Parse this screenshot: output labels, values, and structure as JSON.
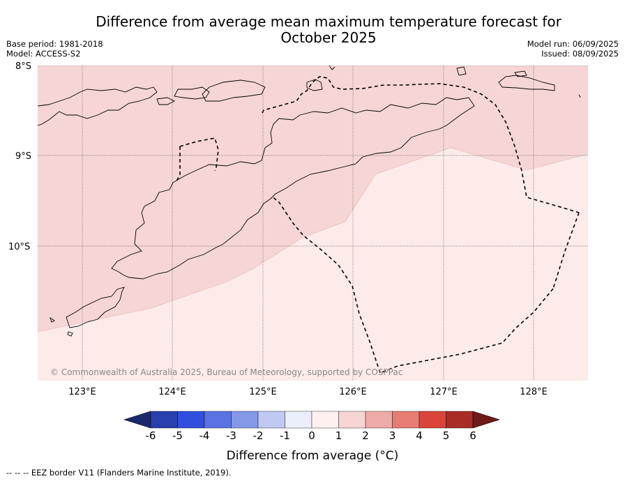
{
  "title": "Difference from average mean maximum temperature forecast for October 2025",
  "base_period": "Base period: 1981-2018",
  "model": "Model: ACCESS-S2",
  "model_run": "Model run: 06/09/2025",
  "issued": "Issued: 08/09/2025",
  "copyright": "© Commonwealth of Australia 2025, Bureau of Meteorology, supported by COSPPac",
  "footnote": "--  --  -- EEZ border V11 (Flanders Marine Institute, 2019).",
  "lat_labels": [
    "8°S",
    "9°S",
    "10°S"
  ],
  "lon_labels": [
    "123°E",
    "124°E",
    "125°E",
    "126°E",
    "127°E",
    "128°E"
  ],
  "colorbar": {
    "title": "Difference from average (°C)",
    "ticks": [
      "-6",
      "-5",
      "-4",
      "-3",
      "-2",
      "-1",
      "0",
      "1",
      "2",
      "3",
      "4",
      "5",
      "6"
    ],
    "colors": [
      "#1b2a6e",
      "#2a3fae",
      "#2f4fdc",
      "#5a72e2",
      "#8498e8",
      "#bfc9f2",
      "#ebeefb",
      "#fdf0ef",
      "#f6d5d3",
      "#eeaaa4",
      "#e57d73",
      "#d9453b",
      "#a92d25",
      "#6e1a16"
    ]
  },
  "map": {
    "lon_range": [
      122.5,
      128.6
    ],
    "lat_range": [
      -11.5,
      -8.0
    ],
    "regions": [
      {
        "class": "1 to 2 °C",
        "color": "#f5d6d4"
      },
      {
        "class": "0 to 1 °C",
        "color": "#fcebe9"
      }
    ]
  },
  "chart_data": {
    "type": "heatmap",
    "title": "Difference from average mean maximum temperature forecast for October 2025",
    "xlabel": "",
    "ylabel": "",
    "xlim": [
      122.5,
      128.6
    ],
    "ylim": [
      -11.5,
      -8.0
    ],
    "x_ticks": [
      "123°E",
      "124°E",
      "125°E",
      "126°E",
      "127°E",
      "128°E"
    ],
    "y_ticks": [
      "8°S",
      "9°S",
      "10°S"
    ],
    "color_scale": {
      "min": -6,
      "max": 6,
      "step": 1,
      "label": "Difference from average (°C)"
    },
    "regions": [
      {
        "range": "1 to 2",
        "location": "north and north-west"
      },
      {
        "range": "0 to 1",
        "location": "south and south-east"
      }
    ]
  }
}
